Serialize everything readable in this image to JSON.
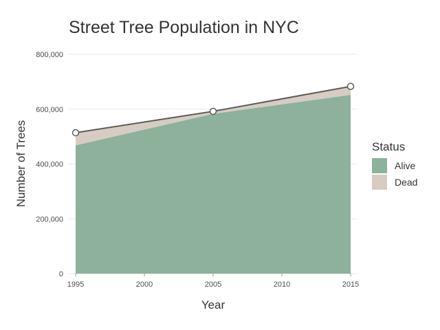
{
  "chart_data": {
    "type": "area",
    "title": "Street Tree Population in NYC",
    "xlabel": "Year",
    "ylabel": "Number of Trees",
    "x": [
      1995,
      2005,
      2015
    ],
    "series": [
      {
        "name": "Alive",
        "values": [
          468000,
          583000,
          652000
        ],
        "color": "#8db19b"
      },
      {
        "name": "Dead",
        "values": [
          46000,
          9000,
          31000
        ],
        "color": "#d6ccc2"
      }
    ],
    "total_line": {
      "values": [
        514000,
        592000,
        683000
      ],
      "color": "#5a5a5a"
    },
    "stacked": true,
    "xlim": [
      1995,
      2015
    ],
    "ylim": [
      0,
      800000
    ],
    "x_ticks": [
      1995,
      2000,
      2005,
      2010,
      2015
    ],
    "x_tick_labels": [
      "1995",
      "2000",
      "2005",
      "2010",
      "2015"
    ],
    "y_ticks": [
      0,
      200000,
      400000,
      600000,
      800000
    ],
    "y_tick_labels": [
      "0",
      "200,000",
      "400,000",
      "600,000",
      "800,000"
    ],
    "grid": true,
    "legend": {
      "title": "Status",
      "placement": "right"
    }
  }
}
